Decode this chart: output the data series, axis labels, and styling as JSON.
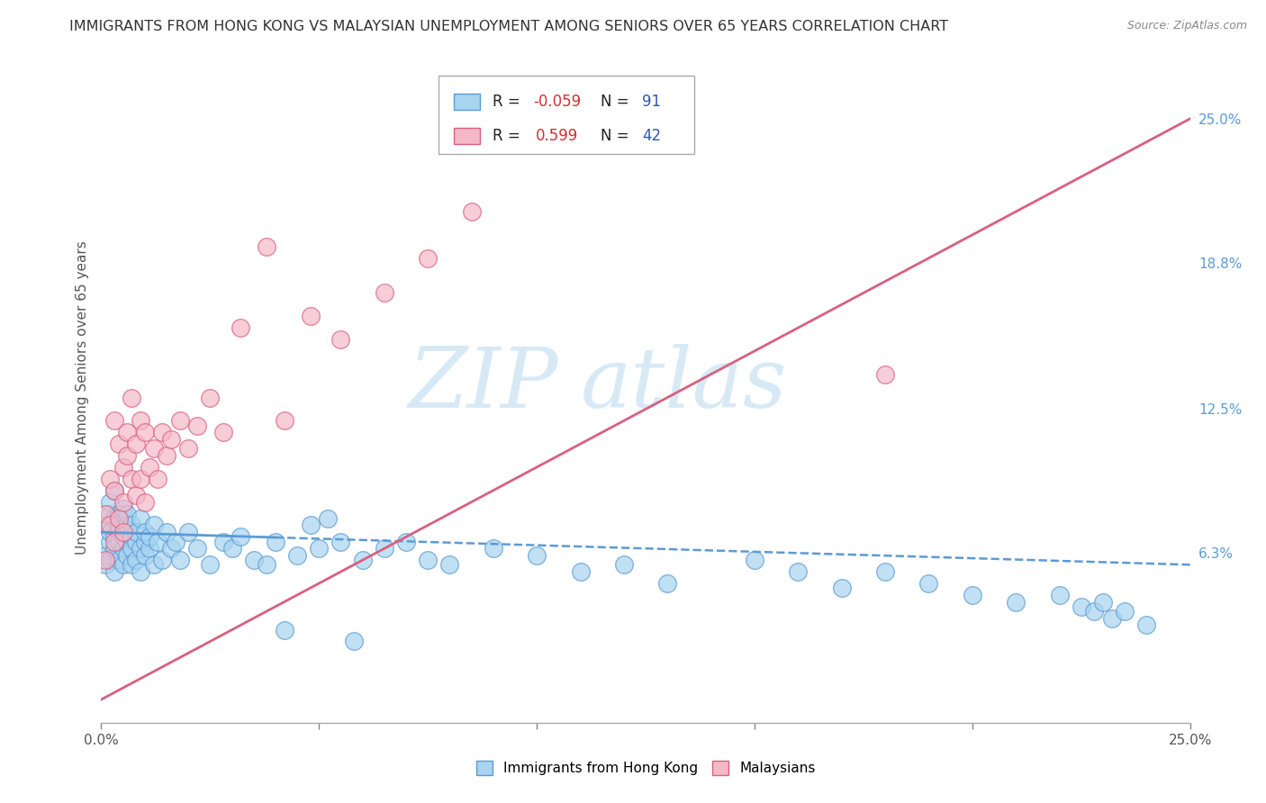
{
  "title": "IMMIGRANTS FROM HONG KONG VS MALAYSIAN UNEMPLOYMENT AMONG SENIORS OVER 65 YEARS CORRELATION CHART",
  "source": "Source: ZipAtlas.com",
  "ylabel": "Unemployment Among Seniors over 65 years",
  "xlim": [
    0.0,
    0.25
  ],
  "ylim": [
    -0.01,
    0.27
  ],
  "x_ticks": [
    0.0,
    0.05,
    0.1,
    0.15,
    0.2,
    0.25
  ],
  "x_tick_labels": [
    "0.0%",
    "",
    "",
    "",
    "",
    "25.0%"
  ],
  "y_tick_labels_right": [
    "25.0%",
    "18.8%",
    "12.5%",
    "6.3%"
  ],
  "y_tick_values_right": [
    0.25,
    0.188,
    0.125,
    0.063
  ],
  "color_hk": "#a8d4f0",
  "color_hk_edge": "#5b9bd5",
  "color_my": "#f4b8c8",
  "color_my_edge": "#d96080",
  "watermark_zip": "ZIP",
  "watermark_atlas": "atlas",
  "hk_trend_x": [
    0.0,
    0.25
  ],
  "hk_trend_y": [
    0.072,
    0.058
  ],
  "hk_trend_solid_end": 0.04,
  "my_trend_x": [
    0.0,
    0.25
  ],
  "my_trend_y": [
    0.0,
    0.25
  ],
  "background_color": "#ffffff",
  "grid_color": "#cccccc",
  "title_color": "#333333",
  "title_fontsize": 11.5,
  "axis_label_color": "#555555",
  "right_tick_color": "#5b9bd5",
  "bottom_legend_items": [
    "Immigrants from Hong Kong",
    "Malaysians"
  ],
  "bottom_legend_colors": [
    "#a8d4f0",
    "#f4b8c8"
  ],
  "bottom_legend_edge_colors": [
    "#5b9bd5",
    "#d96080"
  ],
  "scatter_hk_x": [
    0.001,
    0.001,
    0.001,
    0.002,
    0.002,
    0.002,
    0.002,
    0.002,
    0.003,
    0.003,
    0.003,
    0.003,
    0.003,
    0.004,
    0.004,
    0.004,
    0.004,
    0.004,
    0.005,
    0.005,
    0.005,
    0.005,
    0.005,
    0.006,
    0.006,
    0.006,
    0.006,
    0.007,
    0.007,
    0.007,
    0.007,
    0.008,
    0.008,
    0.008,
    0.009,
    0.009,
    0.009,
    0.01,
    0.01,
    0.01,
    0.011,
    0.011,
    0.012,
    0.012,
    0.013,
    0.014,
    0.015,
    0.016,
    0.017,
    0.018,
    0.02,
    0.022,
    0.025,
    0.028,
    0.03,
    0.032,
    0.035,
    0.038,
    0.04,
    0.045,
    0.05,
    0.055,
    0.06,
    0.065,
    0.07,
    0.075,
    0.08,
    0.09,
    0.1,
    0.11,
    0.12,
    0.13,
    0.15,
    0.16,
    0.17,
    0.18,
    0.19,
    0.2,
    0.21,
    0.22,
    0.225,
    0.228,
    0.23,
    0.232,
    0.235,
    0.24,
    0.042,
    0.048,
    0.052,
    0.058
  ],
  "scatter_hk_y": [
    0.062,
    0.075,
    0.058,
    0.068,
    0.072,
    0.08,
    0.06,
    0.085,
    0.07,
    0.078,
    0.065,
    0.09,
    0.055,
    0.072,
    0.068,
    0.08,
    0.06,
    0.075,
    0.065,
    0.07,
    0.058,
    0.082,
    0.074,
    0.068,
    0.075,
    0.062,
    0.08,
    0.07,
    0.065,
    0.075,
    0.058,
    0.068,
    0.072,
    0.06,
    0.065,
    0.078,
    0.055,
    0.068,
    0.072,
    0.062,
    0.065,
    0.07,
    0.058,
    0.075,
    0.068,
    0.06,
    0.072,
    0.065,
    0.068,
    0.06,
    0.072,
    0.065,
    0.058,
    0.068,
    0.065,
    0.07,
    0.06,
    0.058,
    0.068,
    0.062,
    0.065,
    0.068,
    0.06,
    0.065,
    0.068,
    0.06,
    0.058,
    0.065,
    0.062,
    0.055,
    0.058,
    0.05,
    0.06,
    0.055,
    0.048,
    0.055,
    0.05,
    0.045,
    0.042,
    0.045,
    0.04,
    0.038,
    0.042,
    0.035,
    0.038,
    0.032,
    0.03,
    0.075,
    0.078,
    0.025
  ],
  "scatter_my_x": [
    0.001,
    0.001,
    0.002,
    0.002,
    0.003,
    0.003,
    0.003,
    0.004,
    0.004,
    0.005,
    0.005,
    0.005,
    0.006,
    0.006,
    0.007,
    0.007,
    0.008,
    0.008,
    0.009,
    0.009,
    0.01,
    0.01,
    0.011,
    0.012,
    0.013,
    0.014,
    0.015,
    0.016,
    0.018,
    0.02,
    0.022,
    0.025,
    0.028,
    0.032,
    0.038,
    0.042,
    0.048,
    0.055,
    0.065,
    0.075,
    0.085,
    0.18
  ],
  "scatter_my_y": [
    0.06,
    0.08,
    0.075,
    0.095,
    0.068,
    0.12,
    0.09,
    0.078,
    0.11,
    0.085,
    0.1,
    0.072,
    0.105,
    0.115,
    0.095,
    0.13,
    0.088,
    0.11,
    0.095,
    0.12,
    0.085,
    0.115,
    0.1,
    0.108,
    0.095,
    0.115,
    0.105,
    0.112,
    0.12,
    0.108,
    0.118,
    0.13,
    0.115,
    0.16,
    0.195,
    0.12,
    0.165,
    0.155,
    0.175,
    0.19,
    0.21,
    0.14
  ]
}
